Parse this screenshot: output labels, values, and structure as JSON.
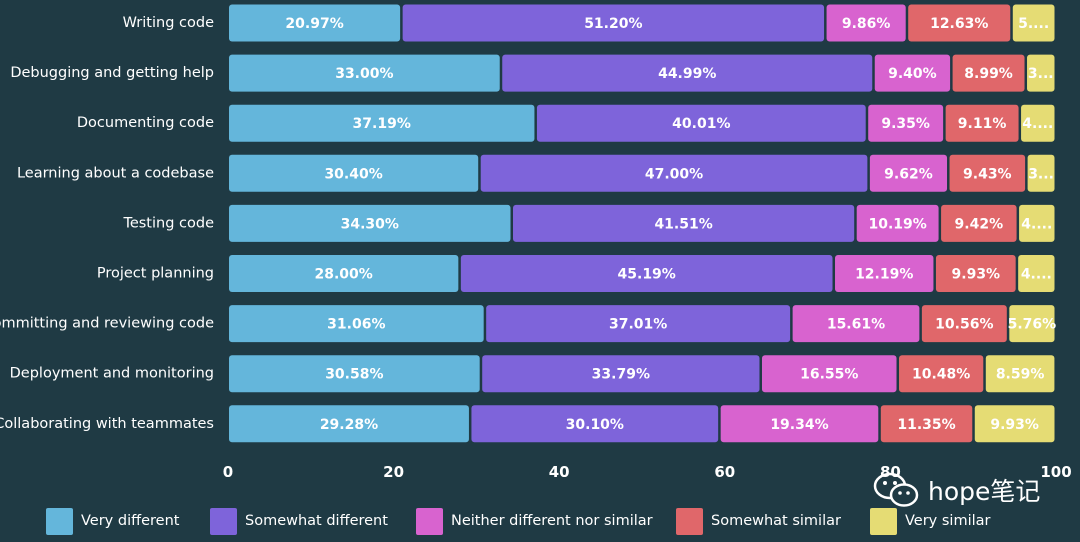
{
  "chart_data": {
    "type": "bar",
    "orientation": "horizontal",
    "stacked": true,
    "title": "",
    "xlabel": "",
    "ylabel": "",
    "xlim": [
      0,
      100
    ],
    "x_ticks": [
      "0",
      "20",
      "40",
      "60",
      "80",
      "100"
    ],
    "categories": [
      "Writing code",
      "Debugging and getting help",
      "Documenting code",
      "Learning about a codebase",
      "Testing code",
      "Project planning",
      "Committing and reviewing code",
      "Deployment and monitoring",
      "Collaborating with teammates"
    ],
    "series": [
      {
        "name": "Very different",
        "color": "#64b6db",
        "values": [
          20.97,
          33.0,
          37.19,
          30.4,
          34.3,
          28.0,
          31.06,
          30.58,
          29.28
        ],
        "labels": [
          "20.97%",
          "33.00%",
          "37.19%",
          "30.40%",
          "34.30%",
          "28.00%",
          "31.06%",
          "30.58%",
          "29.28%"
        ]
      },
      {
        "name": "Somewhat different",
        "color": "#7e64da",
        "values": [
          51.2,
          44.99,
          40.01,
          47.0,
          41.51,
          45.19,
          37.01,
          33.79,
          30.1
        ],
        "labels": [
          "51.20%",
          "44.99%",
          "40.01%",
          "47.00%",
          "41.51%",
          "45.19%",
          "37.01%",
          "33.79%",
          "30.10%"
        ]
      },
      {
        "name": "Neither different nor similar",
        "color": "#d863cf",
        "values": [
          9.86,
          9.4,
          9.35,
          9.62,
          10.19,
          12.19,
          15.61,
          16.55,
          19.34
        ],
        "labels": [
          "9.86%",
          "9.40%",
          "9.35%",
          "9.62%",
          "10.19%",
          "12.19%",
          "15.61%",
          "16.55%",
          "19.34%"
        ]
      },
      {
        "name": "Somewhat similar",
        "color": "#e0676a",
        "values": [
          12.63,
          8.99,
          9.11,
          9.43,
          9.42,
          9.93,
          10.56,
          10.48,
          11.35
        ],
        "labels": [
          "12.63%",
          "8.99%",
          "9.11%",
          "9.43%",
          "9.42%",
          "9.93%",
          "10.56%",
          "10.48%",
          "11.35%"
        ]
      },
      {
        "name": "Very similar",
        "color": "#e5dc74",
        "values": [
          5.34,
          3.62,
          4.34,
          3.55,
          4.58,
          4.69,
          5.76,
          8.59,
          9.93
        ],
        "labels": [
          "5....",
          "3...",
          "4....",
          "3...",
          "4....",
          "4....",
          "5.76%",
          "8.59%",
          "9.93%"
        ]
      }
    ],
    "legend_position": "bottom-left"
  },
  "watermark": {
    "text": "hope笔记",
    "icon": "wechat-icon"
  },
  "colors": {
    "background": "#1f3a44",
    "text": "#ffffff",
    "bar_label": "#ffffff"
  }
}
